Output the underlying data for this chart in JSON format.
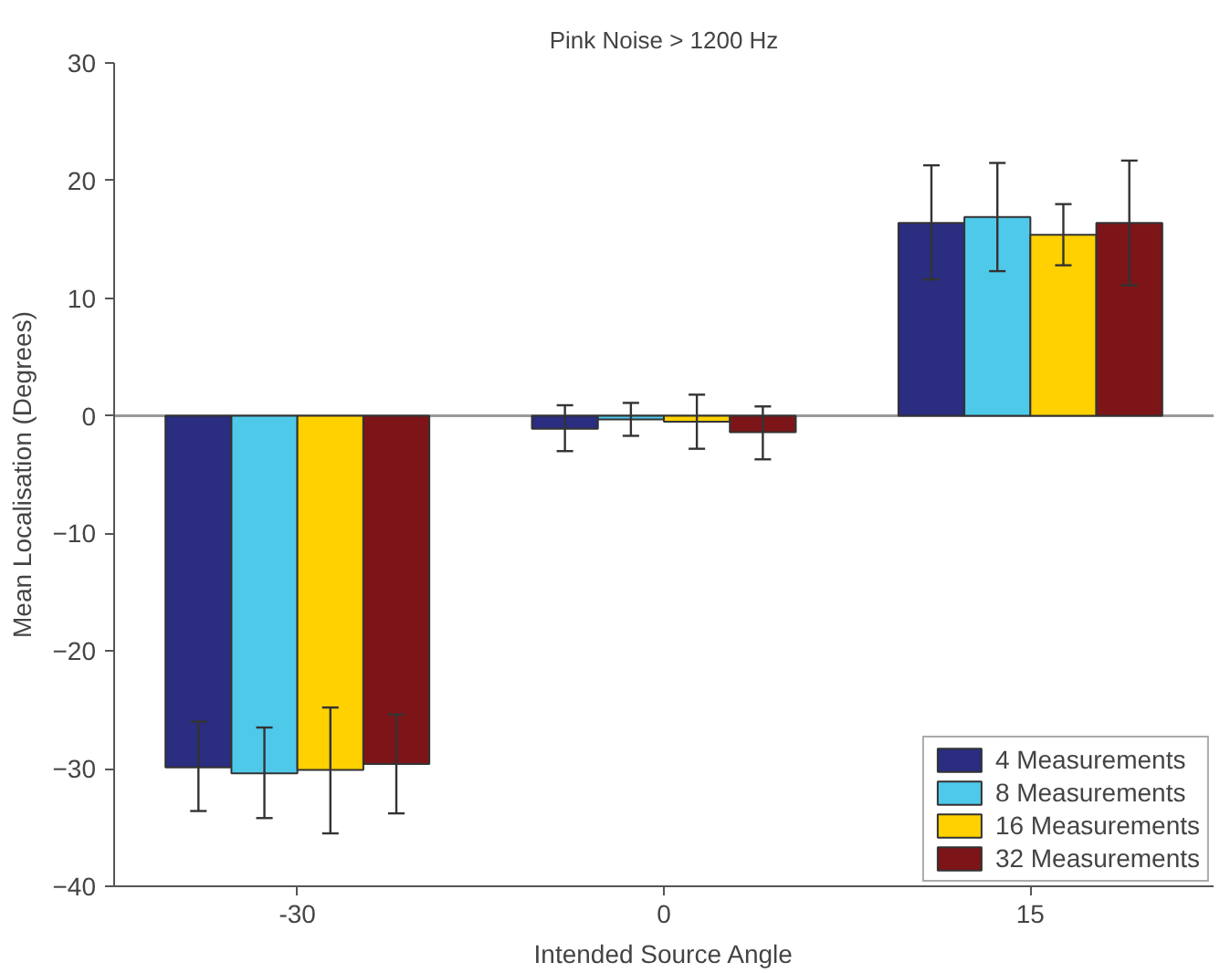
{
  "chart_data": {
    "type": "bar",
    "title": "Pink Noise > 1200 Hz",
    "xlabel": "Intended Source Angle",
    "ylabel": "Mean Localisation (Degrees)",
    "categories": [
      "-30",
      "0",
      "15"
    ],
    "series": [
      {
        "name": "4 Measurements",
        "color": "#2a2d80",
        "values": [
          -29.9,
          -1.1,
          16.4
        ],
        "errors": [
          [
            -33.6,
            -26.0
          ],
          [
            -3.0,
            0.9
          ],
          [
            11.6,
            21.3
          ]
        ]
      },
      {
        "name": "8 Measurements",
        "color": "#4fc9ea",
        "values": [
          -30.4,
          -0.3,
          16.9
        ],
        "errors": [
          [
            -34.2,
            -26.5
          ],
          [
            -1.7,
            1.1
          ],
          [
            12.3,
            21.5
          ]
        ]
      },
      {
        "name": "16 Measurements",
        "color": "#ffd100",
        "values": [
          -30.1,
          -0.5,
          15.4
        ],
        "errors": [
          [
            -35.5,
            -24.8
          ],
          [
            -2.8,
            1.8
          ],
          [
            12.8,
            18.0
          ]
        ]
      },
      {
        "name": "32 Measurements",
        "color": "#7d1518",
        "values": [
          -29.6,
          -1.4,
          16.4
        ],
        "errors": [
          [
            -33.8,
            -25.4
          ],
          [
            -3.7,
            0.8
          ],
          [
            11.1,
            21.7
          ]
        ]
      }
    ],
    "ylim": [
      -40,
      30
    ],
    "yticks": [
      -40,
      -30,
      -20,
      -10,
      0,
      10,
      20,
      30
    ],
    "grid": false,
    "legend": "bottom right",
    "ref_lines": [
      {
        "axis": "y",
        "value": 0,
        "color": "#999999"
      }
    ]
  }
}
